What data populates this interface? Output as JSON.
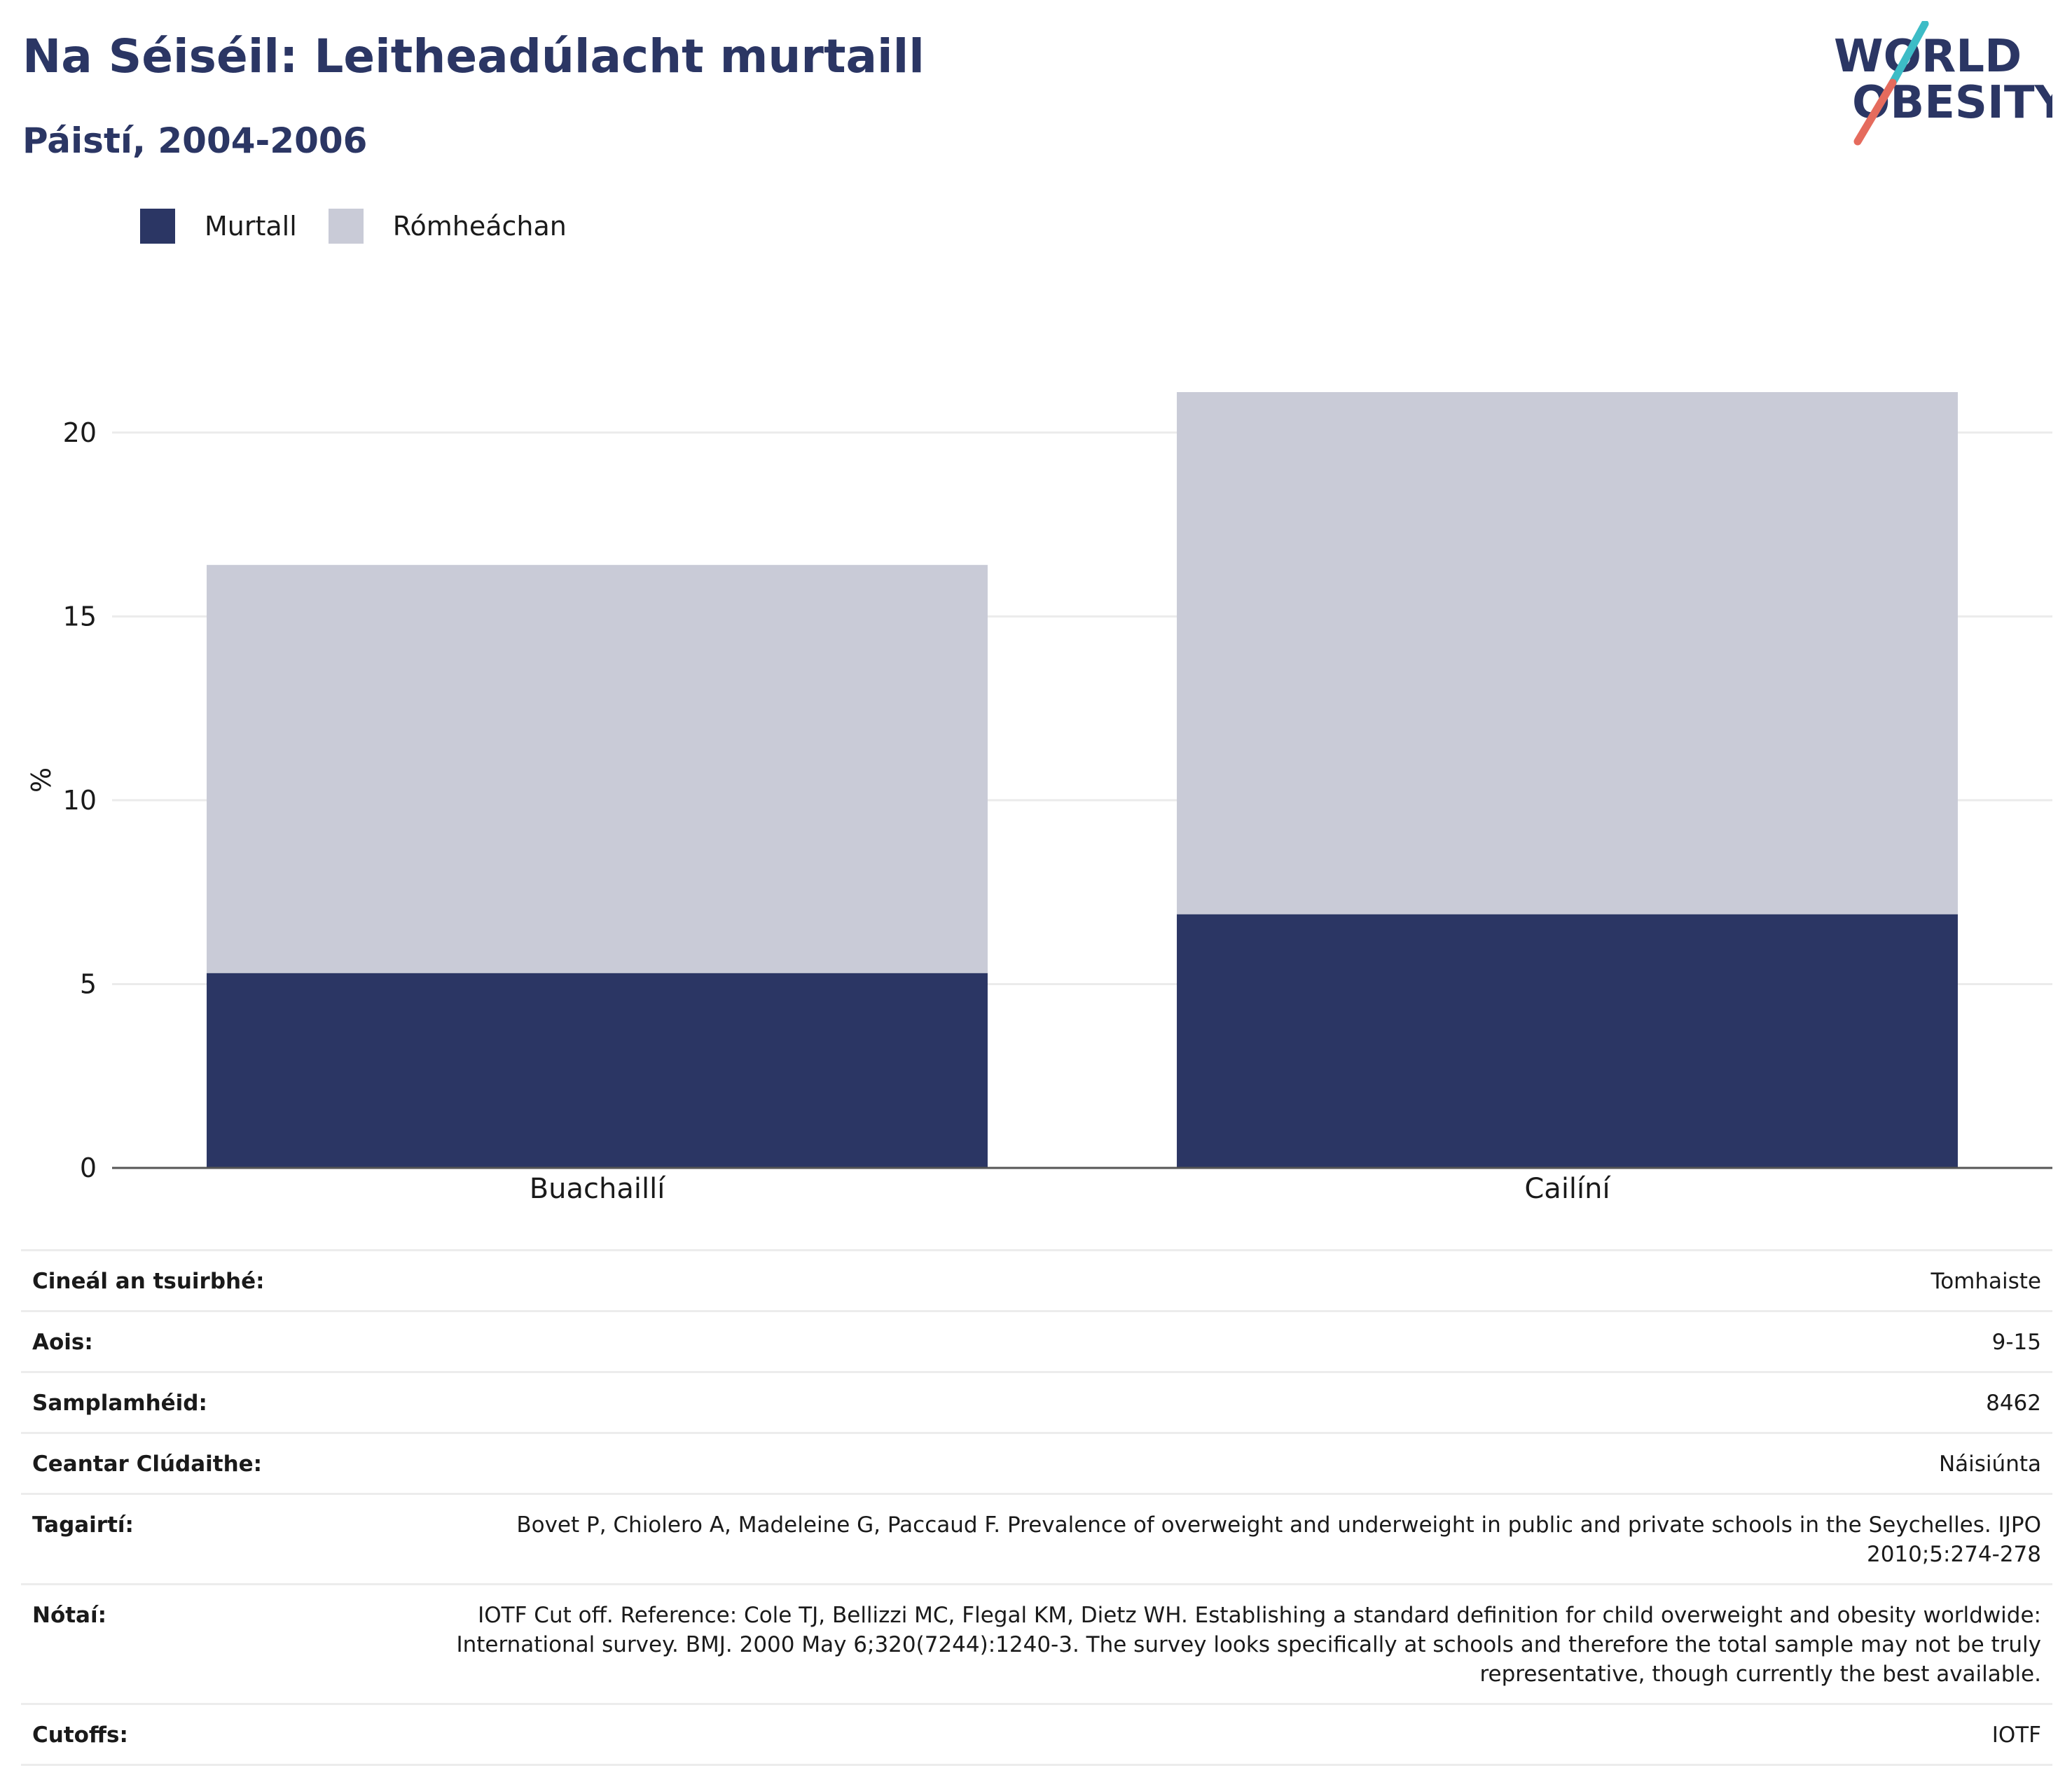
{
  "header": {
    "title": "Na Séiséil: Leitheadúlacht murtaill",
    "subtitle": "Páistí, 2004-2006"
  },
  "logo": {
    "line1": "WORLD",
    "line2": "OBESITY"
  },
  "legend": [
    {
      "label": "Murtall",
      "color": "#2b3664"
    },
    {
      "label": "Rómheáchan",
      "color": "#c9cbd7"
    }
  ],
  "chart_data": {
    "type": "bar",
    "stacked": true,
    "categories": [
      "Buachaillí",
      "Cailíní"
    ],
    "series": [
      {
        "name": "Murtall",
        "values": [
          5.3,
          6.9
        ],
        "color": "#2b3664"
      },
      {
        "name": "Rómheáchan",
        "values": [
          11.1,
          14.2
        ],
        "color": "#c9cbd7"
      }
    ],
    "ylabel": "%",
    "ylim": [
      0,
      21.1
    ],
    "yticks": [
      0,
      5,
      10,
      15,
      20
    ],
    "grid": true,
    "legend_position": "top-left"
  },
  "info": [
    {
      "label": "Cineál an tsuirbhé:",
      "value": "Tomhaiste"
    },
    {
      "label": "Aois:",
      "value": "9-15"
    },
    {
      "label": "Samplamhéid:",
      "value": "8462"
    },
    {
      "label": "Ceantar Clúdaithe:",
      "value": "Náisiúnta"
    },
    {
      "label": "Tagairtí:",
      "value": "Bovet P, Chiolero A, Madeleine G, Paccaud F. Prevalence of overweight and underweight in public and private schools in the Seychelles. IJPO 2010;5:274-278"
    },
    {
      "label": "Nótaí:",
      "value": "IOTF Cut off. Reference: Cole TJ, Bellizzi MC, Flegal KM, Dietz WH. Establishing a standard definition for child overweight and obesity worldwide: International survey. BMJ. 2000 May 6;320(7244):1240-3. The survey looks specifically at schools and therefore the total sample may not be truly representative, though currently the best available."
    },
    {
      "label": "Cutoffs:",
      "value": "IOTF"
    }
  ]
}
